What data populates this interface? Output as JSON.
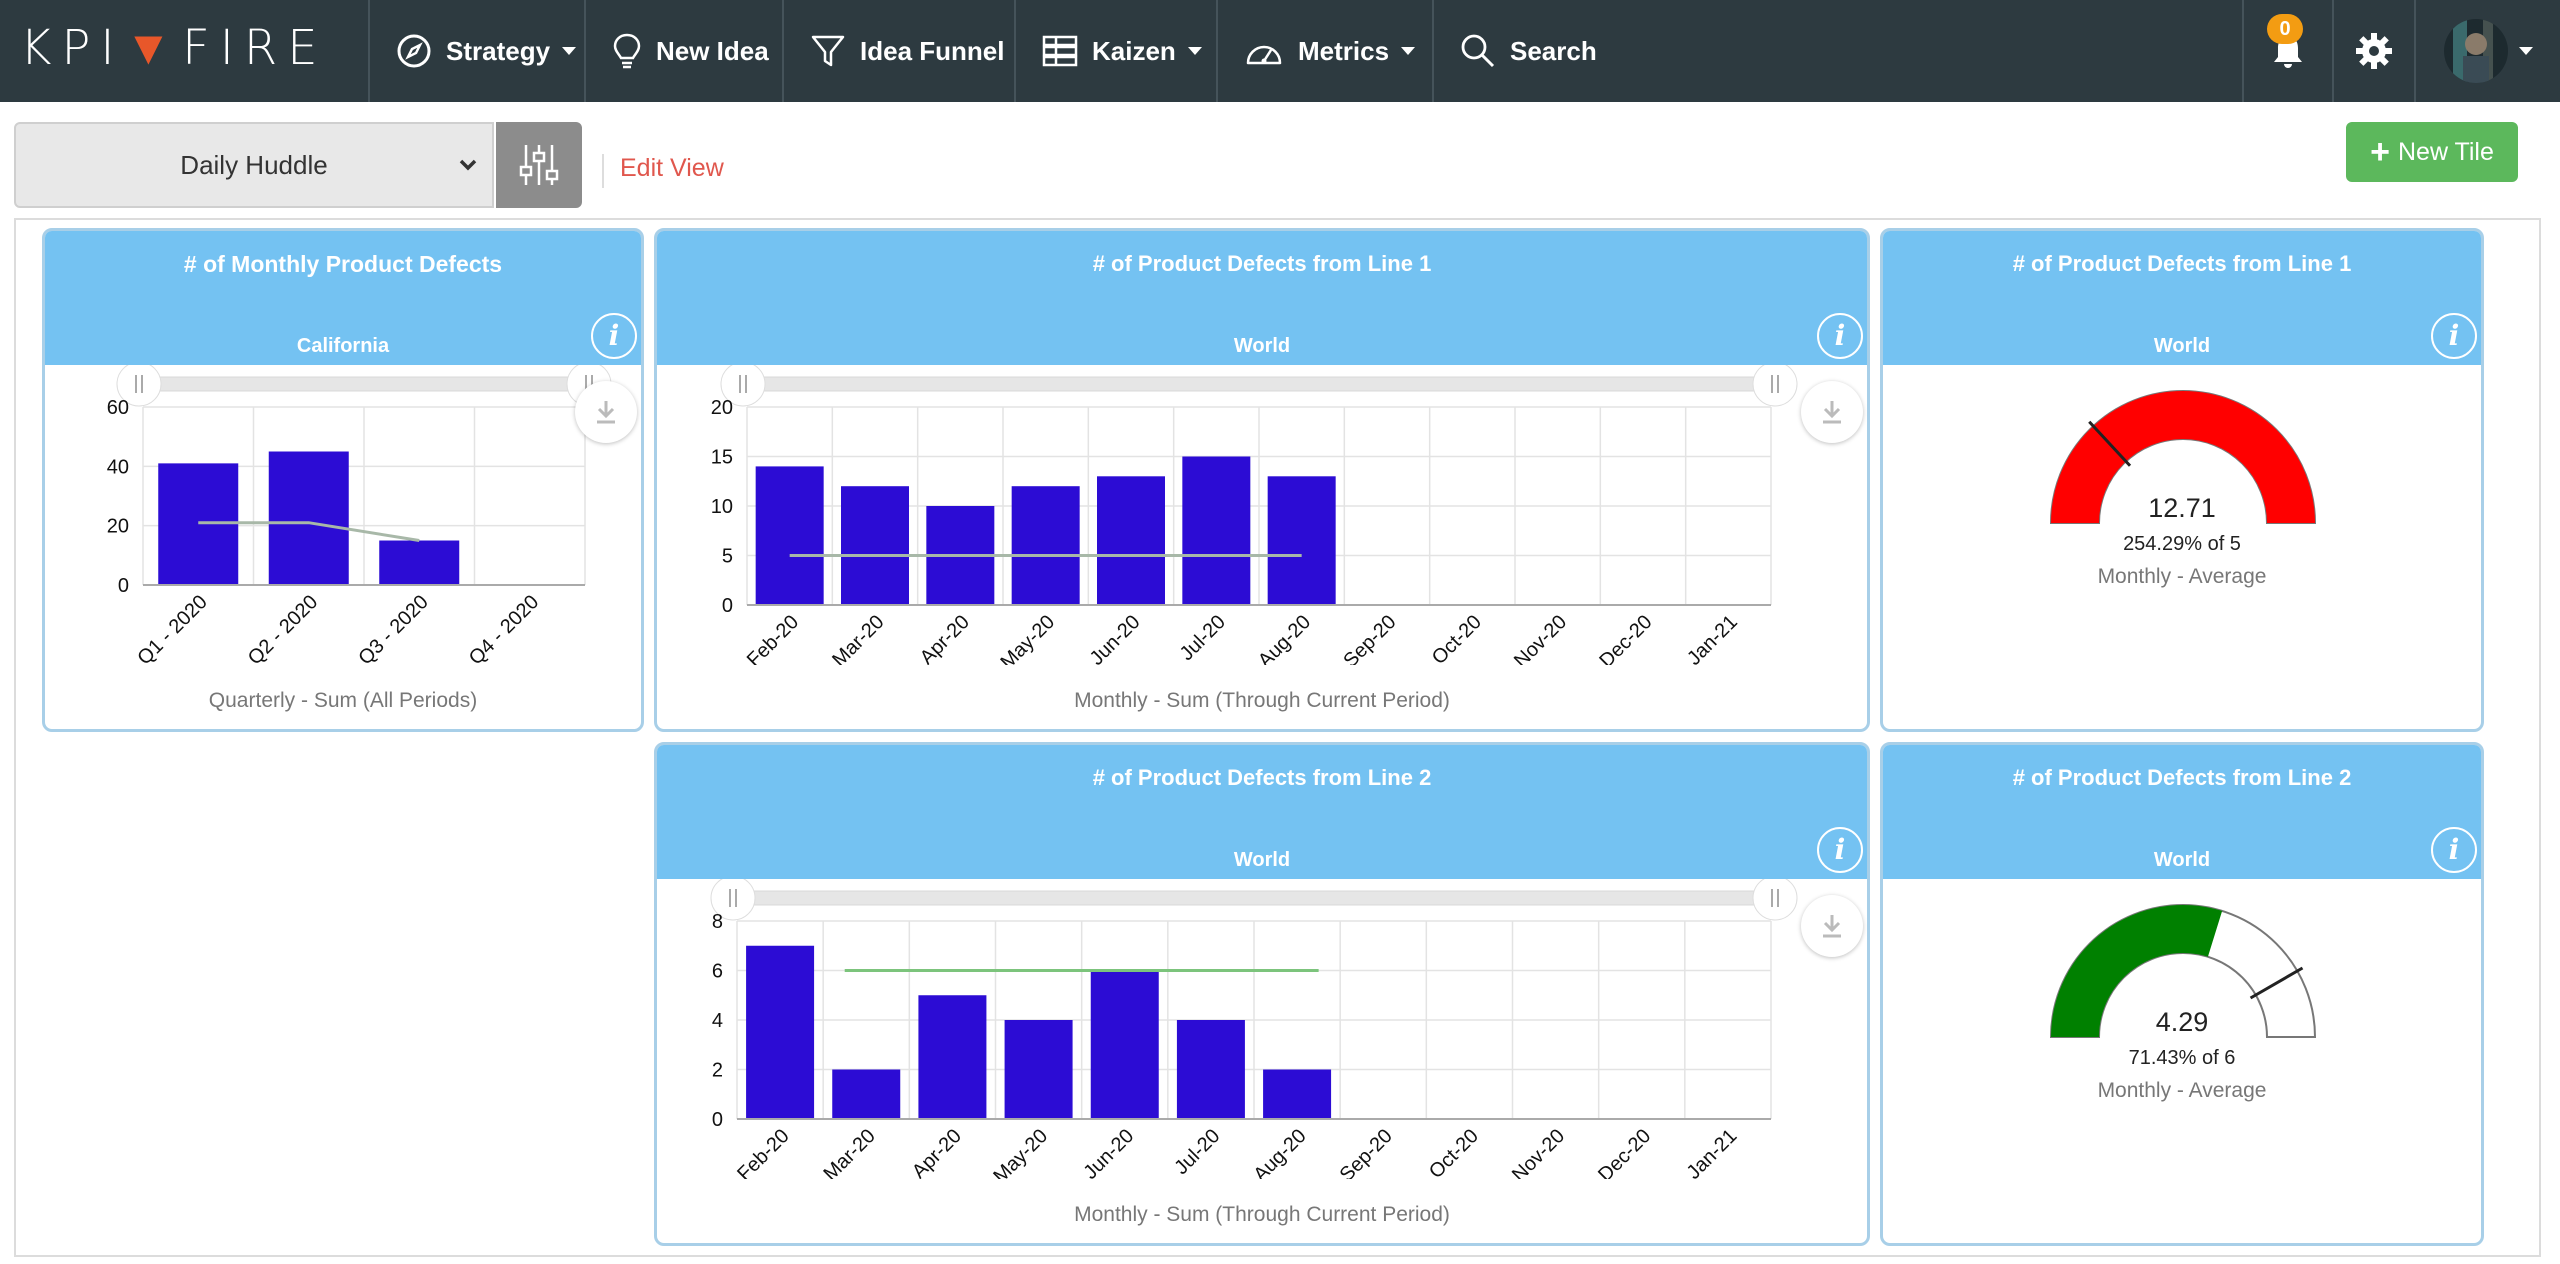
{
  "nav": {
    "logo_left": "KPI",
    "logo_right": "FIRE",
    "items": [
      {
        "label": "Strategy",
        "icon": "compass-icon"
      },
      {
        "label": "New Idea",
        "icon": "lightbulb-icon"
      },
      {
        "label": "Idea Funnel",
        "icon": "funnel-icon"
      },
      {
        "label": "Kaizen",
        "icon": "kaizen-board-icon"
      },
      {
        "label": "Metrics",
        "icon": "speedometer-icon"
      },
      {
        "label": "Search",
        "icon": "search-icon"
      }
    ],
    "notification_count": "0"
  },
  "toolbar": {
    "view_selected": "Daily Huddle",
    "edit_view_label": "Edit View",
    "new_tile_label": "New Tile"
  },
  "colors": {
    "bar": "#2c0cd4",
    "target_line_gray": "#a8b8a8",
    "target_line_green": "#7cc47c",
    "gauge_red": "#ff0000",
    "gauge_green": "#008000",
    "tile_header": "#74c2f2"
  },
  "tiles": {
    "t1": {
      "title": "# of Monthly Product Defects",
      "subtitle": "California",
      "footer": "Quarterly - Sum (All Periods)"
    },
    "t2": {
      "title": "# of Product Defects from Line 1",
      "subtitle": "World",
      "footer": "Monthly - Sum (Through Current Period)"
    },
    "t3": {
      "title": "# of Product Defects from Line 1",
      "subtitle": "World",
      "value": "12.71",
      "percent": "254.29% of 5",
      "footer": "Monthly - Average"
    },
    "t4": {
      "title": "# of Product Defects from Line 2",
      "subtitle": "World",
      "footer": "Monthly - Sum (Through Current Period)"
    },
    "t5": {
      "title": "# of Product Defects from Line 2",
      "subtitle": "World",
      "value": "4.29",
      "percent": "71.43% of 6",
      "footer": "Monthly - Average"
    }
  },
  "chart_data": [
    {
      "id": "t1",
      "type": "bar",
      "categories": [
        "Q1 - 2020",
        "Q2 - 2020",
        "Q3 - 2020",
        "Q4 - 2020"
      ],
      "values": [
        41,
        45,
        15,
        0
      ],
      "target_line": [
        [
          0,
          21
        ],
        [
          1,
          21
        ],
        [
          2,
          15
        ]
      ],
      "yticks": [
        0,
        20,
        40,
        60
      ],
      "ylim": [
        0,
        60
      ]
    },
    {
      "id": "t2",
      "type": "bar",
      "categories": [
        "Feb-20",
        "Mar-20",
        "Apr-20",
        "May-20",
        "Jun-20",
        "Jul-20",
        "Aug-20",
        "Sep-20",
        "Oct-20",
        "Nov-20",
        "Dec-20",
        "Jan-21"
      ],
      "values": [
        14,
        12,
        10,
        12,
        13,
        15,
        13,
        0,
        0,
        0,
        0,
        0
      ],
      "target_line": [
        [
          0,
          5
        ],
        [
          6,
          5
        ]
      ],
      "yticks": [
        0,
        5,
        10,
        15,
        20
      ],
      "ylim": [
        0,
        20
      ]
    },
    {
      "id": "t3",
      "type": "gauge",
      "value": 12.71,
      "target": 5,
      "percent_of_target": 254.29
    },
    {
      "id": "t4",
      "type": "bar",
      "categories": [
        "Feb-20",
        "Mar-20",
        "Apr-20",
        "May-20",
        "Jun-20",
        "Jul-20",
        "Aug-20",
        "Sep-20",
        "Oct-20",
        "Nov-20",
        "Dec-20",
        "Jan-21"
      ],
      "values": [
        7,
        2,
        5,
        4,
        6,
        4,
        2,
        0,
        0,
        0,
        0,
        0
      ],
      "target_line": [
        [
          0.75,
          6
        ],
        [
          6.25,
          6
        ]
      ],
      "yticks": [
        0,
        2,
        4,
        6,
        8
      ],
      "ylim": [
        0,
        8
      ]
    },
    {
      "id": "t5",
      "type": "gauge",
      "value": 4.29,
      "target": 6,
      "percent_of_target": 71.43
    }
  ]
}
